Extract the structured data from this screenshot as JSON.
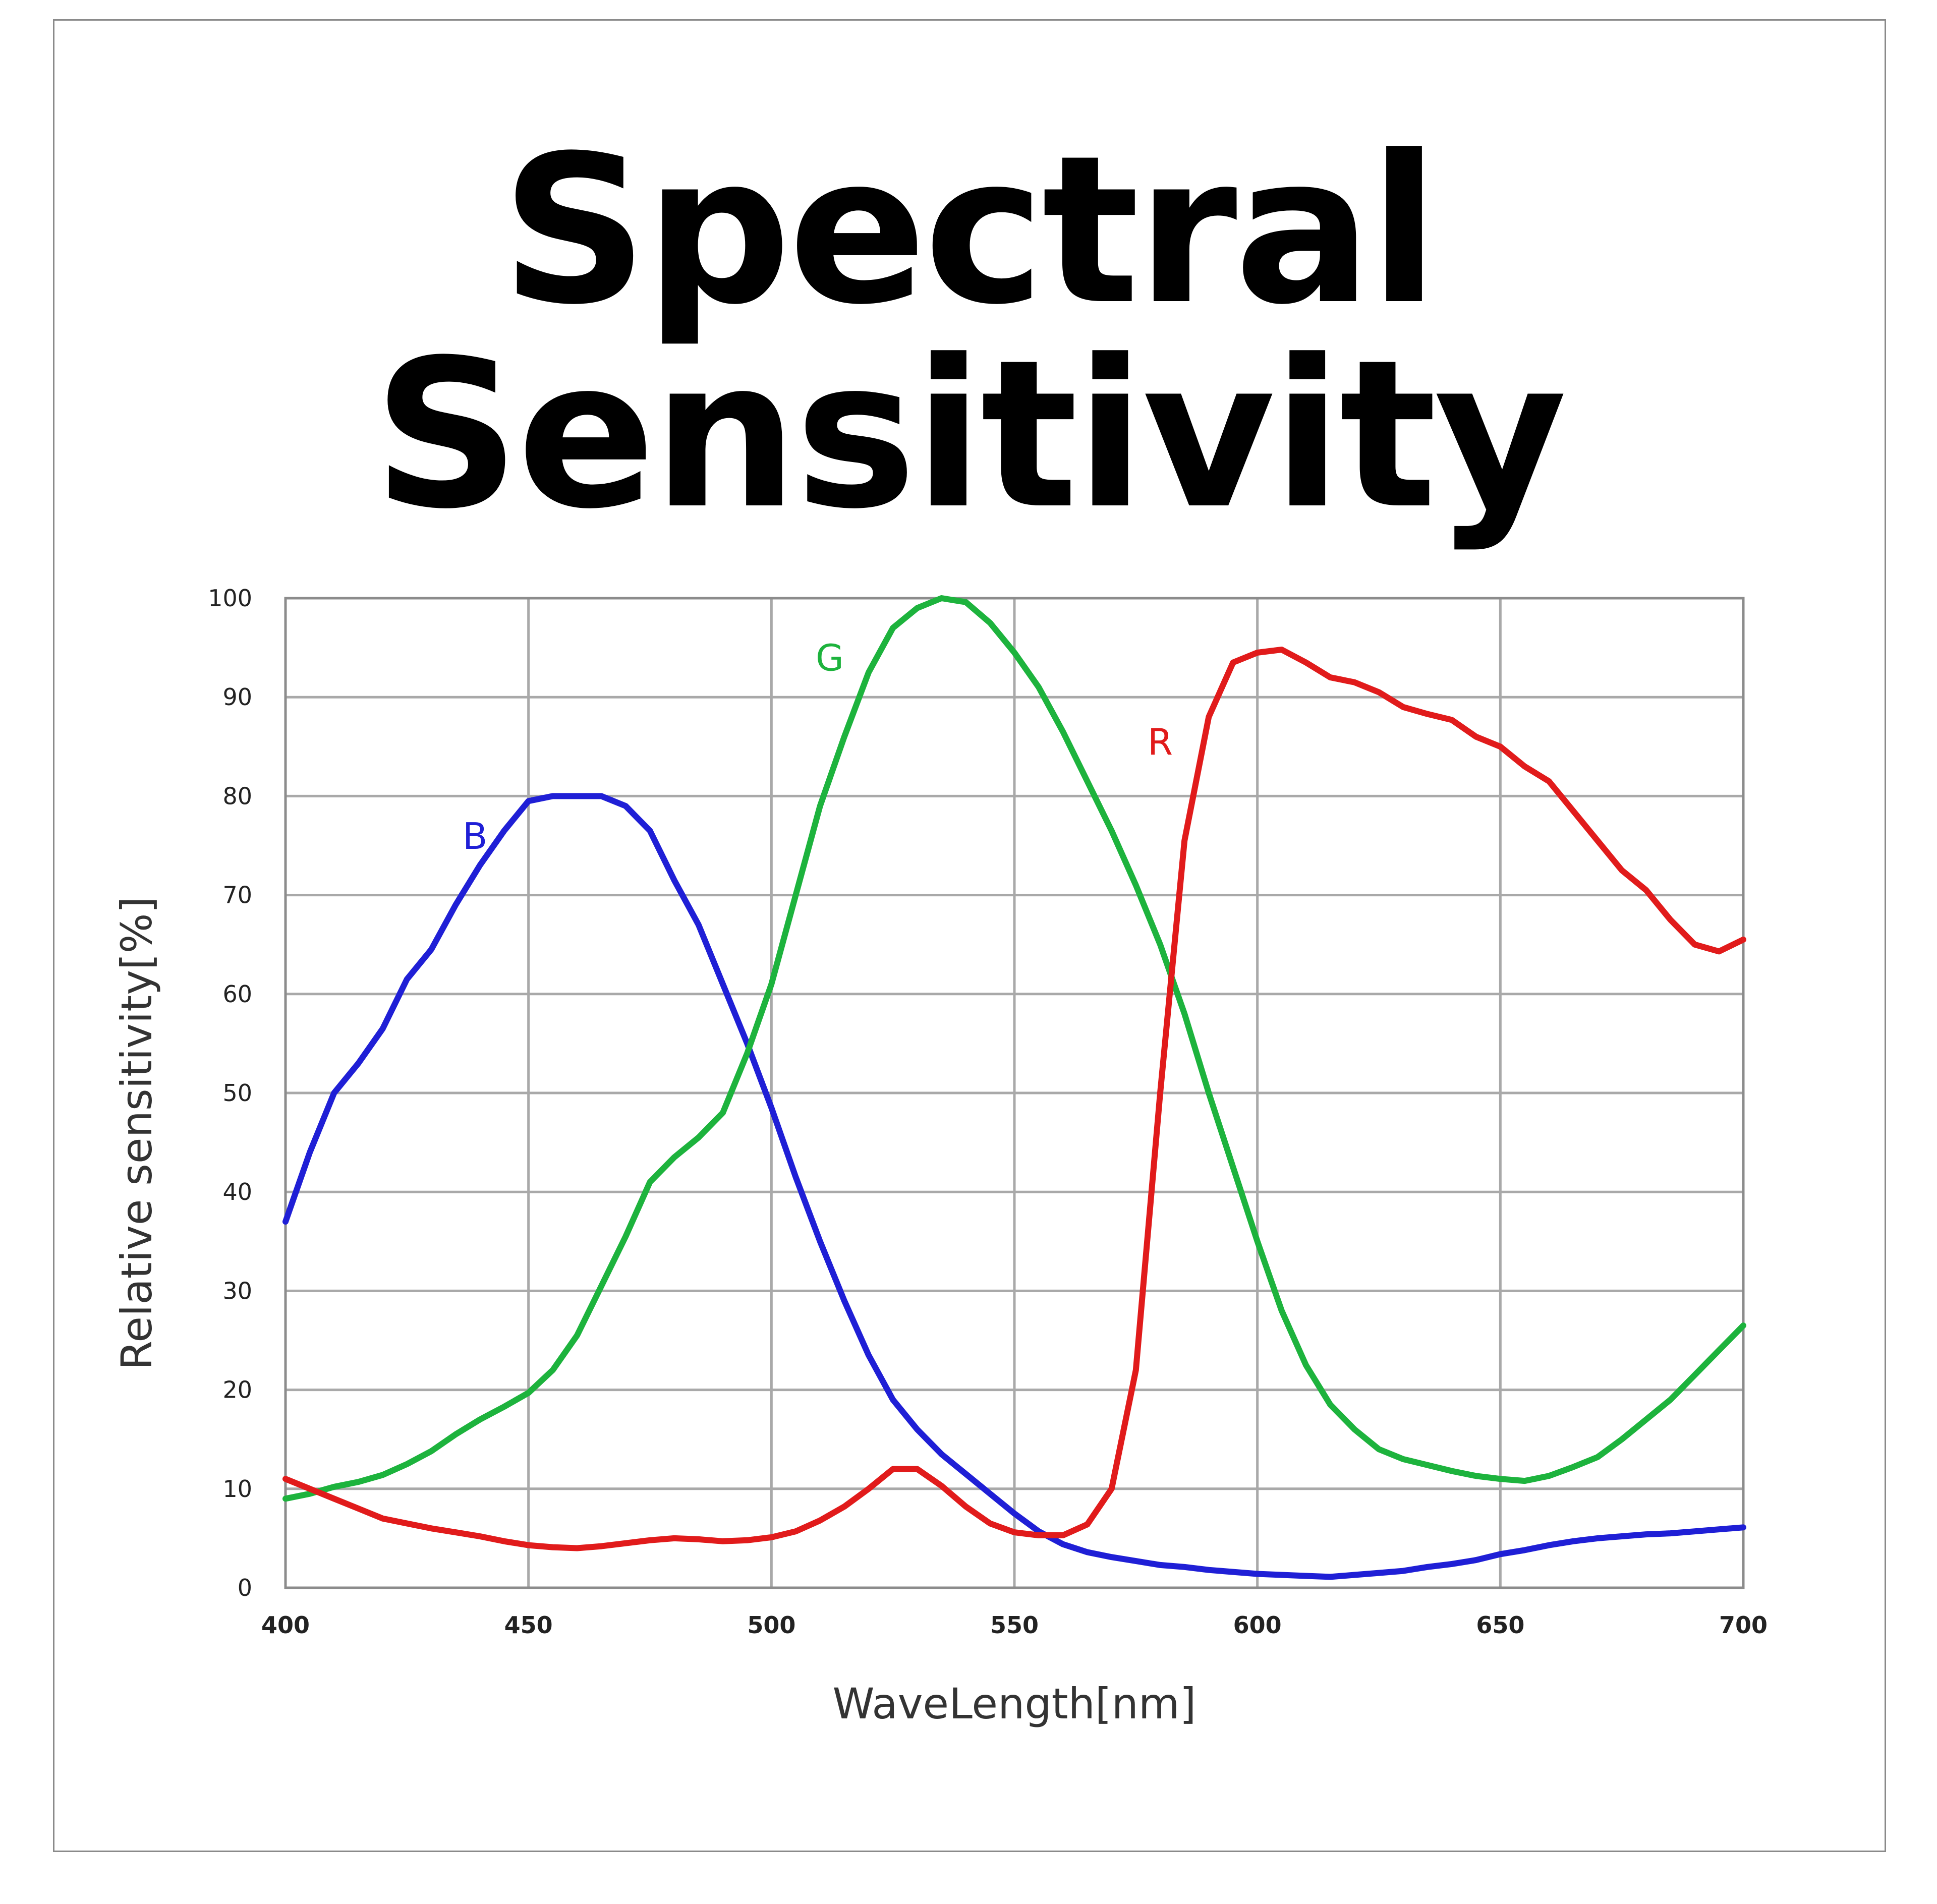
{
  "title": "Spectral Sensitivity",
  "chart_data": {
    "type": "line",
    "title": "Spectral Sensitivity",
    "xlabel": "WaveLength[nm]",
    "ylabel": "Relative sensitivity[%]",
    "xlim": [
      400,
      700
    ],
    "ylim": [
      0,
      100
    ],
    "x_ticks": [
      400,
      450,
      500,
      550,
      600,
      650,
      700
    ],
    "y_ticks": [
      0,
      10,
      20,
      30,
      40,
      50,
      60,
      70,
      80,
      90,
      100
    ],
    "grid": true,
    "series": [
      {
        "name": "B",
        "color": "#1f1fd6",
        "label_at": [
          439,
          76
        ],
        "points": [
          [
            400,
            37
          ],
          [
            405,
            44
          ],
          [
            410,
            50
          ],
          [
            415,
            53
          ],
          [
            420,
            56.5
          ],
          [
            425,
            61.5
          ],
          [
            430,
            64.5
          ],
          [
            435,
            69
          ],
          [
            440,
            73
          ],
          [
            445,
            76.5
          ],
          [
            450,
            79.5
          ],
          [
            455,
            80
          ],
          [
            460,
            80
          ],
          [
            465,
            80
          ],
          [
            470,
            79
          ],
          [
            475,
            76.5
          ],
          [
            480,
            71.5
          ],
          [
            485,
            67
          ],
          [
            490,
            61
          ],
          [
            495,
            55
          ],
          [
            500,
            48.5
          ],
          [
            505,
            41.5
          ],
          [
            510,
            35
          ],
          [
            515,
            29
          ],
          [
            520,
            23.5
          ],
          [
            525,
            19
          ],
          [
            530,
            16
          ],
          [
            535,
            13.5
          ],
          [
            540,
            11.5
          ],
          [
            545,
            9.5
          ],
          [
            550,
            7.5
          ],
          [
            555,
            5.7
          ],
          [
            560,
            4.4
          ],
          [
            565,
            3.6
          ],
          [
            570,
            3.1
          ],
          [
            575,
            2.7
          ],
          [
            580,
            2.3
          ],
          [
            585,
            2.1
          ],
          [
            590,
            1.8
          ],
          [
            595,
            1.6
          ],
          [
            600,
            1.4
          ],
          [
            605,
            1.3
          ],
          [
            610,
            1.2
          ],
          [
            615,
            1.1
          ],
          [
            620,
            1.3
          ],
          [
            625,
            1.5
          ],
          [
            630,
            1.7
          ],
          [
            635,
            2.1
          ],
          [
            640,
            2.4
          ],
          [
            645,
            2.8
          ],
          [
            650,
            3.4
          ],
          [
            655,
            3.8
          ],
          [
            660,
            4.3
          ],
          [
            665,
            4.7
          ],
          [
            670,
            5
          ],
          [
            675,
            5.2
          ],
          [
            680,
            5.4
          ],
          [
            685,
            5.5
          ],
          [
            690,
            5.7
          ],
          [
            695,
            5.9
          ],
          [
            700,
            6.1
          ]
        ]
      },
      {
        "name": "G",
        "color": "#1db33d",
        "label_at": [
          512,
          94
        ],
        "points": [
          [
            400,
            9
          ],
          [
            405,
            9.5
          ],
          [
            410,
            10.2
          ],
          [
            415,
            10.7
          ],
          [
            420,
            11.4
          ],
          [
            425,
            12.5
          ],
          [
            430,
            13.8
          ],
          [
            435,
            15.5
          ],
          [
            440,
            17
          ],
          [
            445,
            18.3
          ],
          [
            450,
            19.7
          ],
          [
            455,
            22
          ],
          [
            460,
            25.5
          ],
          [
            465,
            30.5
          ],
          [
            470,
            35.5
          ],
          [
            475,
            41
          ],
          [
            480,
            43.5
          ],
          [
            485,
            45.5
          ],
          [
            490,
            48
          ],
          [
            495,
            54
          ],
          [
            500,
            61
          ],
          [
            505,
            70
          ],
          [
            510,
            79
          ],
          [
            515,
            86
          ],
          [
            520,
            92.5
          ],
          [
            525,
            97
          ],
          [
            530,
            99
          ],
          [
            535,
            100
          ],
          [
            540,
            99.6
          ],
          [
            545,
            97.5
          ],
          [
            550,
            94.5
          ],
          [
            555,
            91
          ],
          [
            560,
            86.5
          ],
          [
            565,
            81.5
          ],
          [
            570,
            76.5
          ],
          [
            575,
            71
          ],
          [
            580,
            65
          ],
          [
            585,
            58
          ],
          [
            590,
            50
          ],
          [
            595,
            42.5
          ],
          [
            600,
            35
          ],
          [
            605,
            28
          ],
          [
            610,
            22.5
          ],
          [
            615,
            18.5
          ],
          [
            620,
            16
          ],
          [
            625,
            14
          ],
          [
            630,
            13
          ],
          [
            635,
            12.4
          ],
          [
            640,
            11.8
          ],
          [
            645,
            11.3
          ],
          [
            650,
            11
          ],
          [
            655,
            10.8
          ],
          [
            660,
            11.3
          ],
          [
            665,
            12.2
          ],
          [
            670,
            13.2
          ],
          [
            675,
            15
          ],
          [
            680,
            17
          ],
          [
            685,
            19
          ],
          [
            690,
            21.5
          ],
          [
            695,
            24
          ],
          [
            700,
            26.5
          ]
        ]
      },
      {
        "name": "R",
        "color": "#e11b1b",
        "label_at": [
          580,
          85.5
        ],
        "points": [
          [
            400,
            11
          ],
          [
            405,
            10
          ],
          [
            410,
            9
          ],
          [
            415,
            8
          ],
          [
            420,
            7
          ],
          [
            425,
            6.5
          ],
          [
            430,
            6
          ],
          [
            435,
            5.6
          ],
          [
            440,
            5.2
          ],
          [
            445,
            4.7
          ],
          [
            450,
            4.3
          ],
          [
            455,
            4.1
          ],
          [
            460,
            4
          ],
          [
            465,
            4.2
          ],
          [
            470,
            4.5
          ],
          [
            475,
            4.8
          ],
          [
            480,
            5
          ],
          [
            485,
            4.9
          ],
          [
            490,
            4.7
          ],
          [
            495,
            4.8
          ],
          [
            500,
            5.1
          ],
          [
            505,
            5.7
          ],
          [
            510,
            6.8
          ],
          [
            515,
            8.2
          ],
          [
            520,
            10
          ],
          [
            525,
            12
          ],
          [
            530,
            12
          ],
          [
            535,
            10.3
          ],
          [
            540,
            8.2
          ],
          [
            545,
            6.5
          ],
          [
            550,
            5.6
          ],
          [
            555,
            5.3
          ],
          [
            560,
            5.3
          ],
          [
            565,
            6.4
          ],
          [
            570,
            10
          ],
          [
            575,
            22
          ],
          [
            580,
            50
          ],
          [
            585,
            75.5
          ],
          [
            590,
            88
          ],
          [
            595,
            93.5
          ],
          [
            600,
            94.5
          ],
          [
            605,
            94.8
          ],
          [
            610,
            93.5
          ],
          [
            615,
            92
          ],
          [
            620,
            91.5
          ],
          [
            625,
            90.5
          ],
          [
            630,
            89
          ],
          [
            635,
            88.3
          ],
          [
            640,
            87.7
          ],
          [
            645,
            86
          ],
          [
            650,
            85
          ],
          [
            655,
            83
          ],
          [
            660,
            81.5
          ],
          [
            665,
            78.5
          ],
          [
            670,
            75.5
          ],
          [
            675,
            72.5
          ],
          [
            680,
            70.5
          ],
          [
            685,
            67.5
          ],
          [
            690,
            65
          ],
          [
            695,
            64.3
          ],
          [
            700,
            65.5
          ]
        ]
      }
    ]
  }
}
